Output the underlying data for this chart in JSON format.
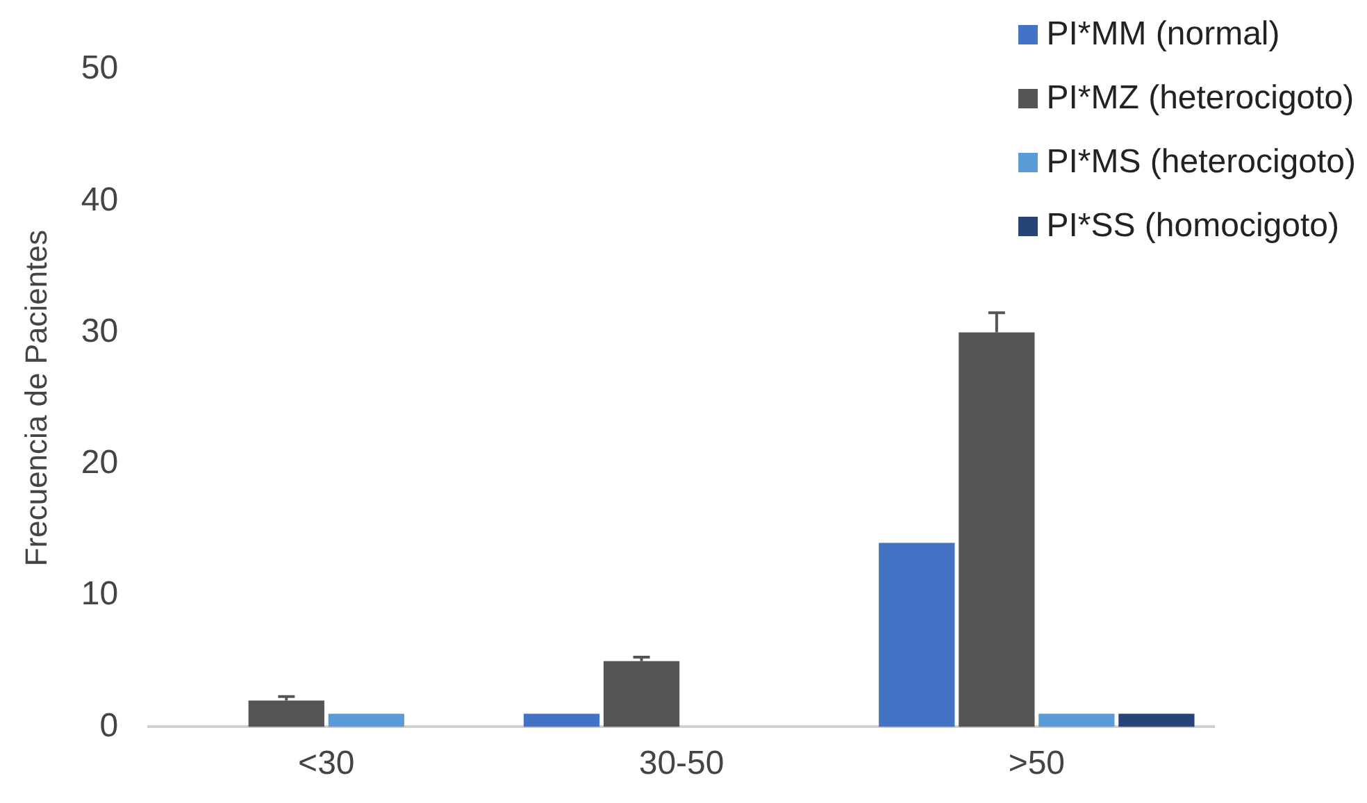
{
  "chart_data": {
    "type": "bar",
    "ylabel": "Frecuencia de Pacientes",
    "categories": [
      "<30",
      "30-50",
      ">50"
    ],
    "series": [
      {
        "name": "PI*MM (normal)",
        "color": "#4472c4",
        "values": [
          null,
          1,
          14
        ]
      },
      {
        "name": "PI*MZ (heterocigoto)",
        "color": "#555555",
        "values": [
          2,
          5,
          30
        ],
        "errors": [
          [
            2,
            2.3
          ],
          [
            5,
            5.3
          ],
          [
            30,
            31.5
          ]
        ]
      },
      {
        "name": "PI*MS (heterocigoto)",
        "color": "#5b9bd5",
        "values": [
          1,
          null,
          1
        ]
      },
      {
        "name": "PI*SS (homocigoto)",
        "color": "#264478",
        "values": [
          null,
          null,
          1
        ]
      }
    ],
    "ylim": [
      0,
      50
    ],
    "yticks": [
      0,
      10,
      20,
      30,
      40,
      50
    ],
    "grid": false,
    "legend": "top right"
  }
}
